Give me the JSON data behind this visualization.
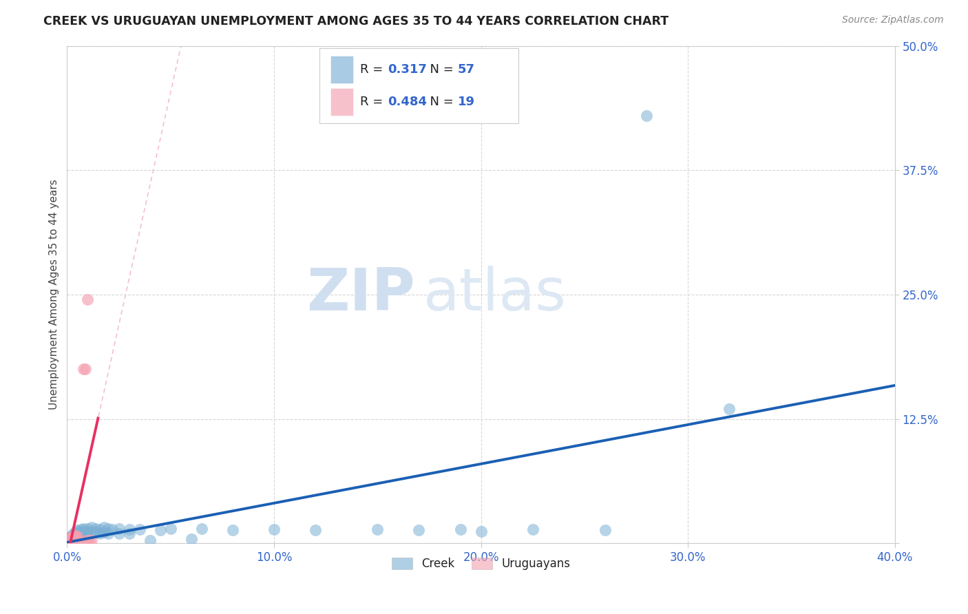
{
  "title": "CREEK VS URUGUAYAN UNEMPLOYMENT AMONG AGES 35 TO 44 YEARS CORRELATION CHART",
  "source": "Source: ZipAtlas.com",
  "ylabel": "Unemployment Among Ages 35 to 44 years",
  "xlim": [
    0.0,
    0.4
  ],
  "ylim": [
    0.0,
    0.5
  ],
  "xticks": [
    0.0,
    0.1,
    0.2,
    0.3,
    0.4
  ],
  "xtick_labels": [
    "0.0%",
    "",
    "",
    "",
    "40.0%"
  ],
  "yticks": [
    0.0,
    0.125,
    0.25,
    0.375,
    0.5
  ],
  "ytick_labels": [
    "",
    "12.5%",
    "25.0%",
    "37.5%",
    "50.0%"
  ],
  "creek_color": "#7bafd4",
  "uruguayan_color": "#f4a0b0",
  "trend_creek_color": "#1a5fb4",
  "trend_uruguayan_color": "#e83060",
  "trend_creek_dashed_color": "#c0d4e8",
  "trend_uruguayan_dashed_color": "#f4c0cc",
  "legend_r_creek": "0.317",
  "legend_n_creek": "57",
  "legend_r_uruguayan": "0.484",
  "legend_n_uruguayan": "19",
  "watermark_zip": "ZIP",
  "watermark_atlas": "atlas",
  "creek_points": [
    [
      0.001,
      0.004
    ],
    [
      0.001,
      0.006
    ],
    [
      0.001,
      0.003
    ],
    [
      0.002,
      0.007
    ],
    [
      0.002,
      0.005
    ],
    [
      0.002,
      0.003
    ],
    [
      0.003,
      0.009
    ],
    [
      0.003,
      0.007
    ],
    [
      0.003,
      0.005
    ],
    [
      0.004,
      0.011
    ],
    [
      0.004,
      0.008
    ],
    [
      0.004,
      0.005
    ],
    [
      0.005,
      0.013
    ],
    [
      0.005,
      0.01
    ],
    [
      0.005,
      0.007
    ],
    [
      0.006,
      0.012
    ],
    [
      0.006,
      0.009
    ],
    [
      0.007,
      0.014
    ],
    [
      0.007,
      0.01
    ],
    [
      0.007,
      0.007
    ],
    [
      0.008,
      0.015
    ],
    [
      0.008,
      0.011
    ],
    [
      0.01,
      0.015
    ],
    [
      0.01,
      0.012
    ],
    [
      0.01,
      0.008
    ],
    [
      0.012,
      0.016
    ],
    [
      0.012,
      0.012
    ],
    [
      0.014,
      0.015
    ],
    [
      0.014,
      0.011
    ],
    [
      0.016,
      0.014
    ],
    [
      0.016,
      0.01
    ],
    [
      0.018,
      0.016
    ],
    [
      0.018,
      0.011
    ],
    [
      0.02,
      0.015
    ],
    [
      0.02,
      0.01
    ],
    [
      0.022,
      0.014
    ],
    [
      0.025,
      0.015
    ],
    [
      0.025,
      0.01
    ],
    [
      0.03,
      0.014
    ],
    [
      0.03,
      0.01
    ],
    [
      0.035,
      0.014
    ],
    [
      0.04,
      0.003
    ],
    [
      0.045,
      0.013
    ],
    [
      0.05,
      0.015
    ],
    [
      0.06,
      0.004
    ],
    [
      0.065,
      0.015
    ],
    [
      0.08,
      0.013
    ],
    [
      0.1,
      0.014
    ],
    [
      0.12,
      0.013
    ],
    [
      0.15,
      0.014
    ],
    [
      0.17,
      0.013
    ],
    [
      0.19,
      0.014
    ],
    [
      0.2,
      0.012
    ],
    [
      0.225,
      0.014
    ],
    [
      0.26,
      0.013
    ],
    [
      0.28,
      0.43
    ],
    [
      0.32,
      0.135
    ]
  ],
  "uruguayan_points": [
    [
      0.001,
      0.004
    ],
    [
      0.001,
      0.005
    ],
    [
      0.002,
      0.006
    ],
    [
      0.002,
      0.005
    ],
    [
      0.002,
      0.004
    ],
    [
      0.003,
      0.007
    ],
    [
      0.003,
      0.005
    ],
    [
      0.003,
      0.004
    ],
    [
      0.004,
      0.008
    ],
    [
      0.004,
      0.006
    ],
    [
      0.005,
      0.007
    ],
    [
      0.005,
      0.003
    ],
    [
      0.006,
      0.003
    ],
    [
      0.008,
      0.175
    ],
    [
      0.009,
      0.175
    ],
    [
      0.01,
      0.245
    ],
    [
      0.01,
      0.003
    ],
    [
      0.011,
      0.003
    ],
    [
      0.012,
      0.003
    ]
  ],
  "tick_color": "#3366cc",
  "ylabel_color": "#444444",
  "grid_color": "#cccccc",
  "spine_color": "#cccccc"
}
